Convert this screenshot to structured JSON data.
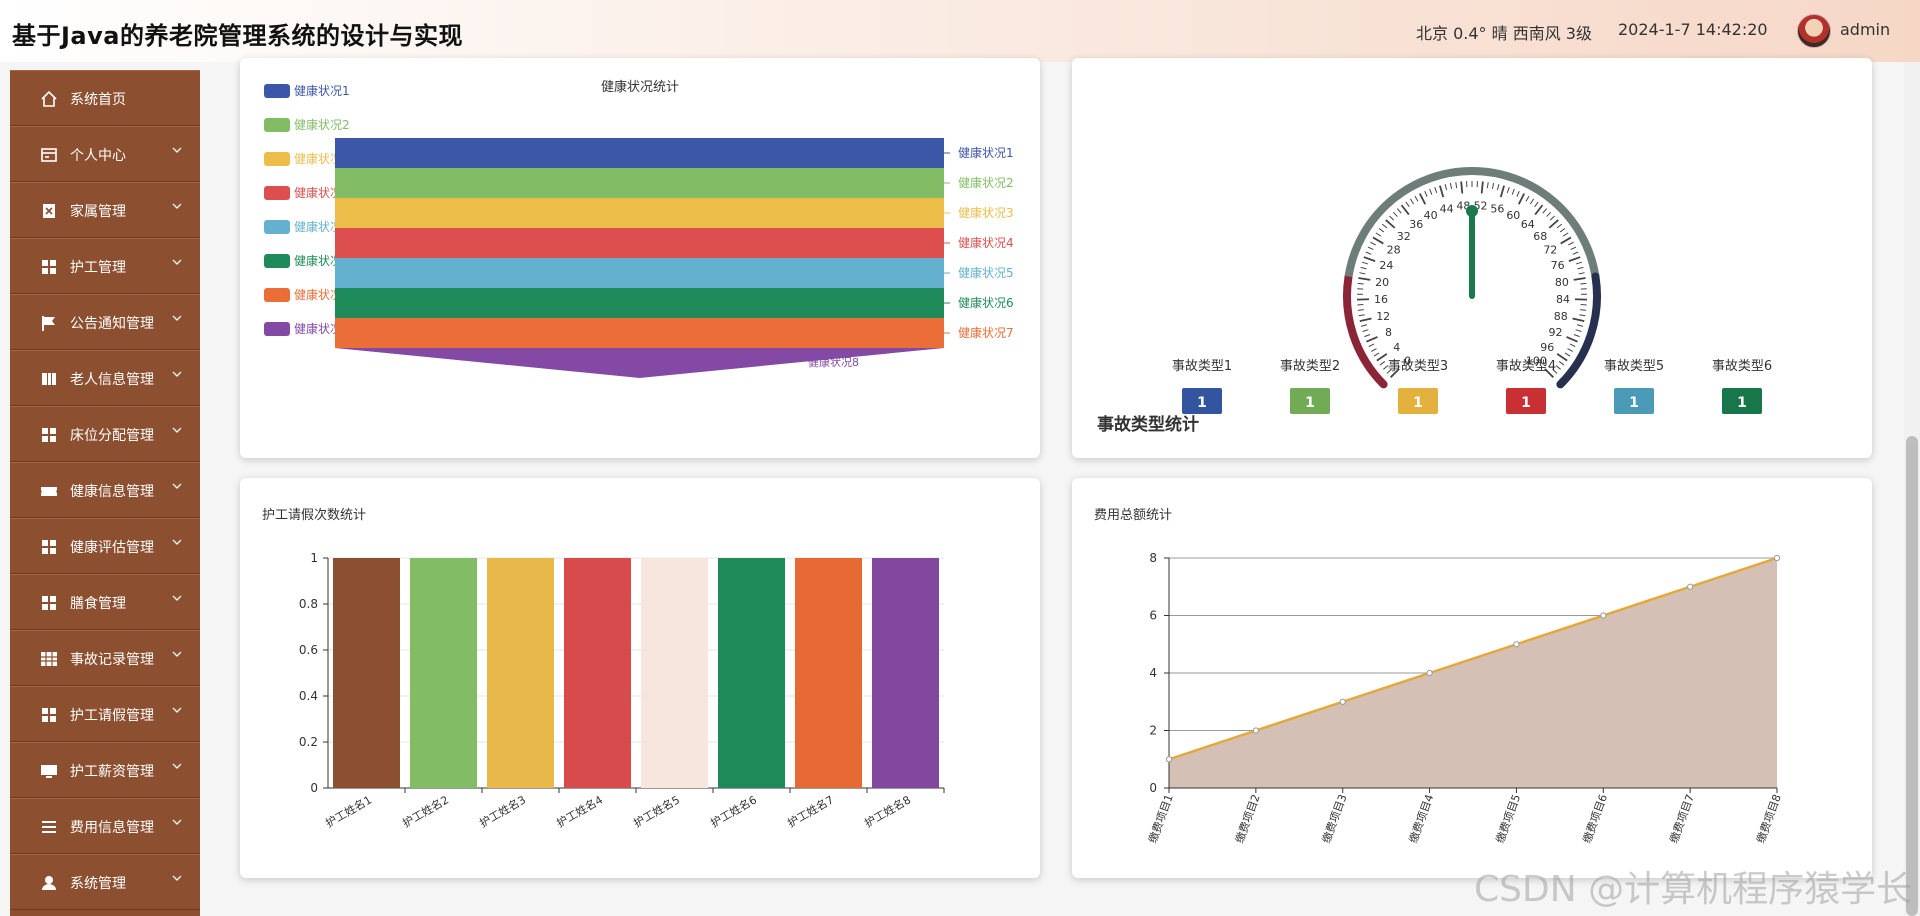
{
  "header": {
    "title": "基于Java的养老院管理系统的设计与实现",
    "weather": "北京  0.4°  晴  西南风  3级",
    "datetime": "2024-1-7 14:42:20",
    "username": "admin"
  },
  "sidebar": {
    "items": [
      {
        "label": "系统首页",
        "icon": "home-icon"
      },
      {
        "label": "个人中心",
        "icon": "card-icon"
      },
      {
        "label": "家属管理",
        "icon": "clipboard-icon"
      },
      {
        "label": "护工管理",
        "icon": "grid-icon"
      },
      {
        "label": "公告通知管理",
        "icon": "flag-icon"
      },
      {
        "label": "老人信息管理",
        "icon": "book-icon"
      },
      {
        "label": "床位分配管理",
        "icon": "grid-icon"
      },
      {
        "label": "健康信息管理",
        "icon": "ticket-icon"
      },
      {
        "label": "健康评估管理",
        "icon": "grid-icon"
      },
      {
        "label": "膳食管理",
        "icon": "grid-icon"
      },
      {
        "label": "事故记录管理",
        "icon": "table-icon"
      },
      {
        "label": "护工请假管理",
        "icon": "grid-icon"
      },
      {
        "label": "护工薪资管理",
        "icon": "monitor-icon"
      },
      {
        "label": "费用信息管理",
        "icon": "list-icon"
      },
      {
        "label": "系统管理",
        "icon": "user-icon"
      }
    ]
  },
  "watermark": "CSDN @计算机程序猿学长",
  "chart_data": [
    {
      "type": "funnel",
      "title": "健康状况统计",
      "categories": [
        "健康状况1",
        "健康状况2",
        "健康状况3",
        "健康状况4",
        "健康状况5",
        "健康状况6",
        "健康状况7",
        "健康状况8"
      ],
      "values": [
        1,
        1,
        1,
        1,
        1,
        1,
        1,
        0
      ],
      "colors": [
        "#3d57a8",
        "#82bd66",
        "#edbd49",
        "#dd4e4f",
        "#63b1cf",
        "#1f8a59",
        "#eb6d38",
        "#8449a5"
      ]
    },
    {
      "type": "gauge",
      "title": "事故类型统计",
      "min": 0,
      "max": 100,
      "ticks": [
        0,
        4,
        8,
        12,
        16,
        20,
        24,
        28,
        32,
        36,
        40,
        44,
        48,
        52,
        56,
        60,
        64,
        68,
        72,
        76,
        80,
        84,
        88,
        92,
        96,
        100
      ],
      "value": 50,
      "items": [
        {
          "name": "事故类型1",
          "value": "1",
          "color": "#33549f"
        },
        {
          "name": "事故类型2",
          "value": "1",
          "color": "#72ab55"
        },
        {
          "name": "事故类型3",
          "value": "1",
          "color": "#e3b23e"
        },
        {
          "name": "事故类型4",
          "value": "1",
          "color": "#c83033"
        },
        {
          "name": "事故类型5",
          "value": "1",
          "color": "#4a9ab8"
        },
        {
          "name": "事故类型6",
          "value": "1",
          "color": "#17764a"
        }
      ]
    },
    {
      "type": "bar",
      "title": "护工请假次数统计",
      "categories": [
        "护工姓名1",
        "护工姓名2",
        "护工姓名3",
        "护工姓名4",
        "护工姓名5",
        "护工姓名6",
        "护工姓名7",
        "护工姓名8"
      ],
      "values": [
        1,
        1,
        1,
        1,
        1,
        1,
        1,
        1
      ],
      "colors": [
        "#8d4f31",
        "#82bd66",
        "#e9b84a",
        "#d84b4d",
        "#f6e6dd",
        "#1f8a59",
        "#e76a34",
        "#82489f"
      ],
      "ylim": [
        0,
        1
      ],
      "yticks": [
        "0",
        "0.2",
        "0.4",
        "0.6",
        "0.8",
        "1"
      ]
    },
    {
      "type": "area",
      "title": "费用总额统计",
      "categories": [
        "缴费项目1",
        "缴费项目2",
        "缴费项目3",
        "缴费项目4",
        "缴费项目5",
        "缴费项目6",
        "缴费项目7",
        "缴费项目8"
      ],
      "values": [
        1,
        2,
        3,
        4,
        5,
        6,
        7,
        8
      ],
      "ylim": [
        0,
        8
      ],
      "yticks": [
        "0",
        "2",
        "4",
        "6",
        "8"
      ],
      "line_color": "#e4a838",
      "fill_color": "#d4c0b4"
    }
  ]
}
